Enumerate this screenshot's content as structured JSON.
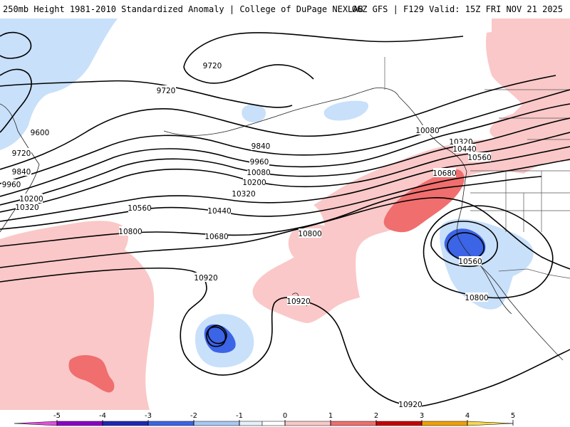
{
  "header": {
    "title_left": "250mb Height 1981-2010 Standardized Anomaly | College of DuPage NEXLAB",
    "title_right": "06Z GFS | F129 Valid: 15Z FRI NOV 21 2025"
  },
  "map": {
    "variable": "250mb geopotential height (m) with standardized anomaly shading",
    "contour_labels": [
      "9720",
      "9720",
      "9720",
      "9600",
      "9840",
      "9840",
      "9960",
      "9960",
      "10080",
      "10080",
      "10200",
      "10200",
      "10320",
      "10320",
      "10320",
      "10440",
      "10440",
      "10560",
      "10560",
      "10560",
      "10680",
      "10680",
      "10800",
      "10800",
      "10800",
      "10920",
      "10920",
      "10920"
    ],
    "anomaly_colors": {
      "strong_negative": "#3c64e6",
      "moderate_negative": "#6e96f0",
      "weak_negative": "#c8e0fa",
      "weak_positive": "#fac8c8",
      "moderate_positive": "#f06e6e"
    }
  },
  "colorbar": {
    "tick_labels": [
      "-5",
      "-4",
      "-3",
      "-2",
      "-1",
      "0",
      "1",
      "2",
      "3",
      "4",
      "5"
    ],
    "colors": [
      "#e050e0",
      "#8a00c8",
      "#1e28b4",
      "#3c64e6",
      "#a8c8f5",
      "#e6f0fb",
      "#ffffff",
      "#fac8c8",
      "#f06e6e",
      "#c80000",
      "#f0a000",
      "#f8d850"
    ]
  }
}
